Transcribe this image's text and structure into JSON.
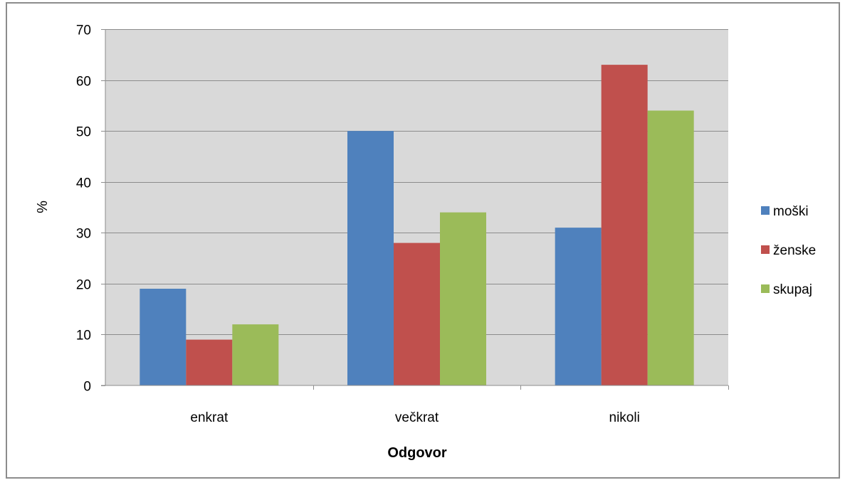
{
  "chart_data": {
    "type": "bar",
    "title": "",
    "xlabel": "Odgovor",
    "ylabel": "%",
    "categories": [
      "enkrat",
      "večkrat",
      "nikoli"
    ],
    "series": [
      {
        "name": "moški",
        "values": [
          19,
          50,
          31
        ],
        "color": "#4f81bd"
      },
      {
        "name": "ženske",
        "values": [
          9,
          28,
          63
        ],
        "color": "#c0504d"
      },
      {
        "name": "skupaj",
        "values": [
          12,
          34,
          54
        ],
        "color": "#9bbb59"
      }
    ],
    "ylim": [
      0,
      70
    ],
    "yticks": [
      0,
      10,
      20,
      30,
      40,
      50,
      60,
      70
    ],
    "grid": true,
    "legend_position": "right",
    "plot_background": "#d9d9d9",
    "gridline_color": "#8c8c8c",
    "frame_color": "#8c8c8c"
  }
}
